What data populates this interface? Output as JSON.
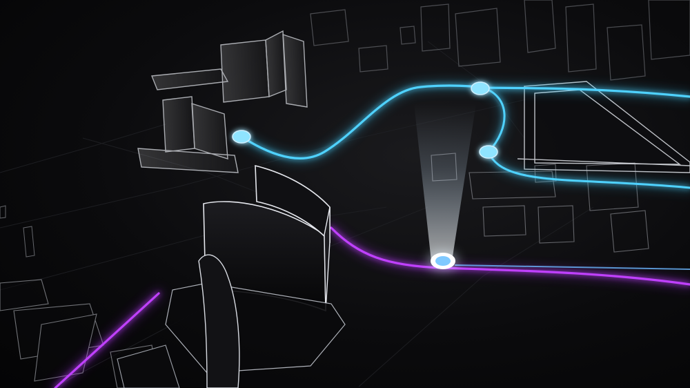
{
  "scene": {
    "kind": "3D wireframe city map with glowing route lines",
    "colors": {
      "background": "#0a0a0c",
      "building_stroke": "#d8dbe2",
      "cyan_route": "#39c8f5",
      "purple_route": "#b233ff",
      "marker_glow": "#8fe4ff",
      "marker_active": "#ffffff"
    },
    "routes": [
      {
        "name": "cyan-route",
        "color_key": "cyan_route"
      },
      {
        "name": "cyan-route-lower",
        "color_key": "cyan_route"
      },
      {
        "name": "purple-route",
        "color_key": "purple_route"
      }
    ],
    "markers": [
      {
        "name": "waypoint-left",
        "state": "passive"
      },
      {
        "name": "waypoint-top",
        "state": "passive"
      },
      {
        "name": "waypoint-mid",
        "state": "passive"
      },
      {
        "name": "current-location-marker",
        "state": "active"
      }
    ]
  }
}
